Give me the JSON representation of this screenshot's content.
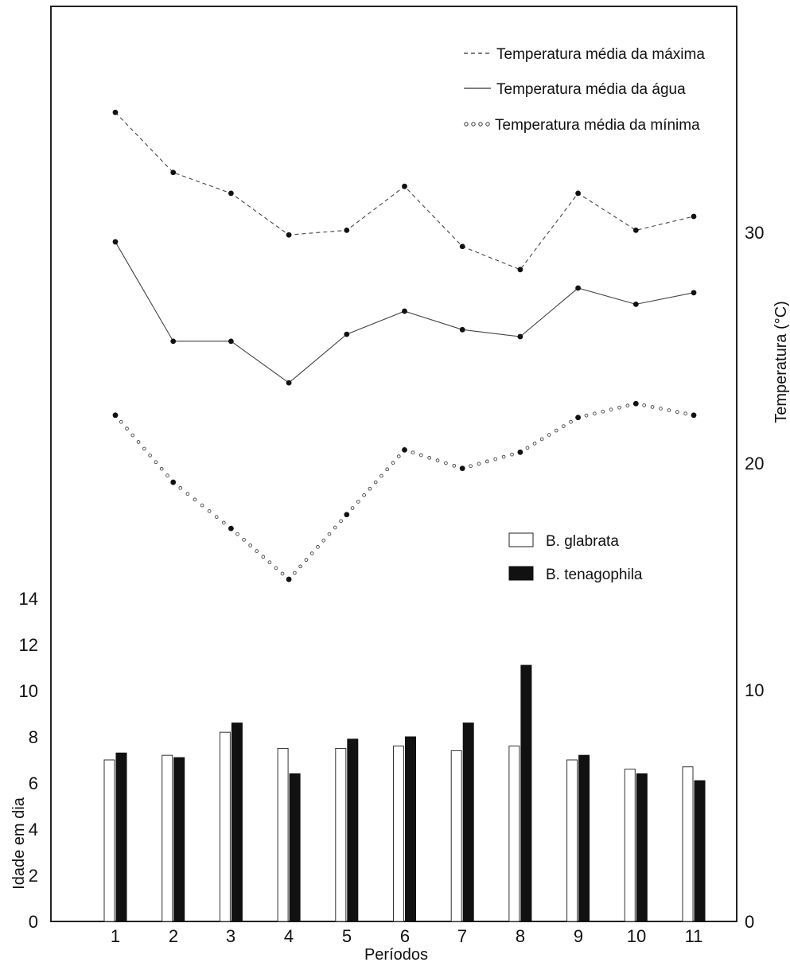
{
  "chart_data": {
    "type": "bar+line",
    "title": "",
    "x": [
      "1",
      "2",
      "3",
      "4",
      "5",
      "6",
      "7",
      "8",
      "9",
      "10",
      "11"
    ],
    "xlabel": "Períodos",
    "left_axis": {
      "label": "Idade em dia",
      "ylim": [
        0,
        14
      ],
      "ticks": [
        "0",
        "2",
        "4",
        "6",
        "8",
        "10",
        "12",
        "14"
      ]
    },
    "right_axis": {
      "label": "Temperatura (°C)",
      "ylim": [
        0,
        30
      ],
      "ticks": [
        "0",
        "10",
        "20",
        "30"
      ]
    },
    "line_legend": [
      {
        "name": "Temperatura média da máxima",
        "style": "dashed",
        "color": "#333333"
      },
      {
        "name": "Temperatura média da água",
        "style": "solid",
        "color": "#333333"
      },
      {
        "name": "Temperatura média da mínima",
        "style": "dotted-circles",
        "color": "#333333"
      }
    ],
    "bar_legend": [
      {
        "name": "B. glabrata",
        "fill": "#ffffff"
      },
      {
        "name": "B. tenagophila",
        "fill": "#111111"
      }
    ],
    "line_series": [
      {
        "name": "Temperatura média da máxima",
        "values": [
          35.0,
          32.4,
          31.5,
          29.7,
          29.9,
          31.8,
          29.2,
          28.2,
          31.5,
          29.9,
          30.5
        ]
      },
      {
        "name": "Temperatura média da água",
        "values": [
          29.4,
          25.1,
          25.1,
          23.3,
          25.4,
          26.4,
          25.6,
          25.3,
          27.4,
          26.7,
          27.2
        ]
      },
      {
        "name": "Temperatura média da mínima",
        "values": [
          21.9,
          19.0,
          17.0,
          14.8,
          17.6,
          20.4,
          19.6,
          20.3,
          21.8,
          22.4,
          21.9
        ]
      }
    ],
    "bar_series": [
      {
        "name": "B. glabrata",
        "values": [
          7.0,
          7.2,
          8.2,
          7.5,
          7.5,
          7.6,
          7.4,
          7.6,
          7.0,
          6.6,
          6.7
        ]
      },
      {
        "name": "B. tenagophila",
        "values": [
          7.3,
          7.1,
          8.6,
          6.4,
          7.9,
          8.0,
          8.6,
          11.1,
          7.2,
          6.4,
          6.1
        ]
      }
    ],
    "grid": false,
    "legend_placement": "top-right"
  }
}
